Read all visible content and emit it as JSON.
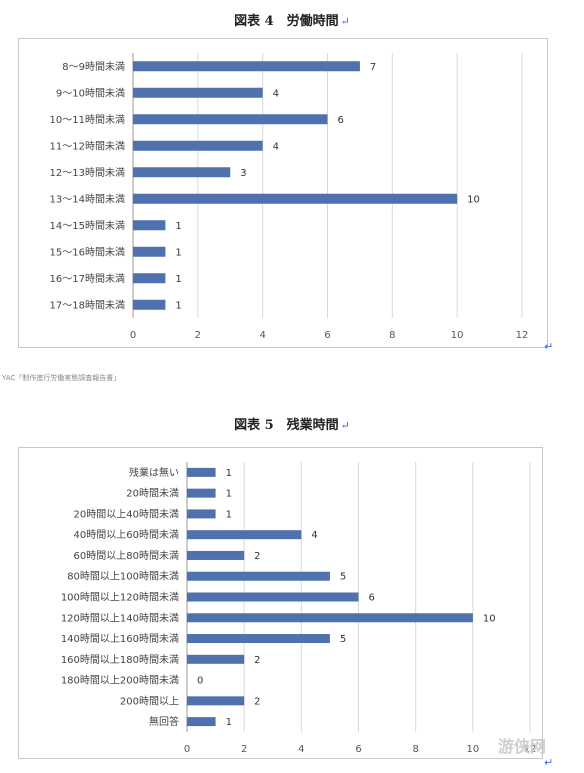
{
  "source_note": "YAC「制作進行労働実態調査報告書」",
  "return_mark": "↵",
  "watermark": "游侠网",
  "chart_data": [
    {
      "type": "bar",
      "orientation": "horizontal",
      "title": "図表 4　労働時間",
      "categories": [
        "8〜9時間未満",
        "9〜10時間未満",
        "10〜11時間未満",
        "11〜12時間未満",
        "12〜13時間未満",
        "13〜14時間未満",
        "14〜15時間未満",
        "15〜16時間未満",
        "16〜17時間未満",
        "17〜18時間未満"
      ],
      "values": [
        7,
        4,
        6,
        4,
        3,
        10,
        1,
        1,
        1,
        1
      ],
      "ticks": [
        "0",
        "2",
        "4",
        "6",
        "8",
        "10",
        "12"
      ],
      "xlim": [
        0,
        12
      ],
      "grid": true,
      "bar_color": "#4f71ae"
    },
    {
      "type": "bar",
      "orientation": "horizontal",
      "title": "図表 5　残業時間",
      "categories": [
        "残業は無い",
        "20時間未満",
        "20時間以上40時間未満",
        "40時間以上60時間未満",
        "60時間以上80時間未満",
        "80時間以上100時間未満",
        "100時間以上120時間未満",
        "120時間以上140時間未満",
        "140時間以上160時間未満",
        "160時間以上180時間未満",
        "180時間以上200時間未満",
        "200時間以上",
        "無回答"
      ],
      "values": [
        1,
        1,
        1,
        4,
        2,
        5,
        6,
        10,
        5,
        2,
        0,
        2,
        1
      ],
      "ticks": [
        "0",
        "2",
        "4",
        "6",
        "8",
        "10",
        "12"
      ],
      "xlim": [
        0,
        12
      ],
      "grid": true,
      "bar_color": "#4f71ae"
    }
  ]
}
